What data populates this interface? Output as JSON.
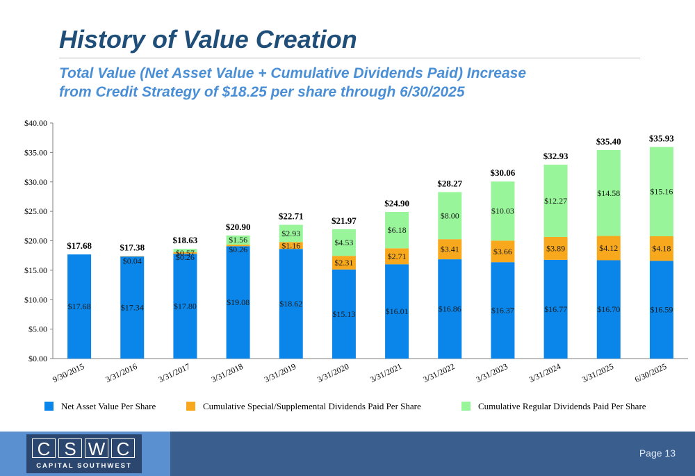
{
  "slide": {
    "title": "History of Value Creation",
    "subtitle_line1": "Total Value (Net Asset Value + Cumulative Dividends Paid) Increase",
    "subtitle_line2": "from Credit Strategy of $18.25 per share through 6/30/2025",
    "page_label": "Page 13"
  },
  "logo": {
    "letters": [
      "C",
      "S",
      "W",
      "C"
    ],
    "tagline": "CAPITAL SOUTHWEST"
  },
  "colors": {
    "nav": "#0a86ea",
    "special": "#f8a81c",
    "regular": "#98f59a",
    "title": "#1f4e79",
    "subtitle": "#4a8fd6"
  },
  "chart_data": {
    "type": "bar",
    "stacked": true,
    "categories": [
      "9/30/2015",
      "3/31/2016",
      "3/31/2017",
      "3/31/2018",
      "3/31/2019",
      "3/31/2020",
      "3/31/2021",
      "3/31/2022",
      "3/31/2023",
      "3/31/2024",
      "3/31/2025",
      "6/30/2025"
    ],
    "series": [
      {
        "name": "Net Asset Value Per Share",
        "color": "#0a86ea",
        "values": [
          17.68,
          17.34,
          17.8,
          19.08,
          18.62,
          15.13,
          16.01,
          16.86,
          16.37,
          16.77,
          16.7,
          16.59
        ],
        "labels": [
          "$17.68",
          "$17.34",
          "$17.80",
          "$19.08",
          "$18.62",
          "$15.13",
          "$16.01",
          "$16.86",
          "$16.37",
          "$16.77",
          "$16.70",
          "$16.59"
        ]
      },
      {
        "name": "Cumulative Special/Supplemental Dividends Paid Per Share",
        "color": "#f8a81c",
        "values": [
          0,
          0.04,
          0.26,
          0.26,
          1.16,
          2.31,
          2.71,
          3.41,
          3.66,
          3.89,
          4.12,
          4.18
        ],
        "labels": [
          "",
          "$0.04",
          "$0.26",
          "$0.26",
          "$1.16",
          "$2.31",
          "$2.71",
          "$3.41",
          "$3.66",
          "$3.89",
          "$4.12",
          "$4.18"
        ]
      },
      {
        "name": "Cumulative Regular Dividends Paid Per Share",
        "color": "#98f59a",
        "values": [
          0,
          0,
          0.57,
          1.56,
          2.93,
          4.53,
          6.18,
          8.0,
          10.03,
          12.27,
          14.58,
          15.16
        ],
        "labels": [
          "",
          "",
          "$0.57",
          "$1.56",
          "$2.93",
          "$4.53",
          "$6.18",
          "$8.00",
          "$10.03",
          "$12.27",
          "$14.58",
          "$15.16"
        ]
      }
    ],
    "totals": [
      17.68,
      17.38,
      18.63,
      20.9,
      22.71,
      21.97,
      24.9,
      28.27,
      30.06,
      32.93,
      35.4,
      35.93
    ],
    "total_labels": [
      "$17.68",
      "$17.38",
      "$18.63",
      "$20.90",
      "$22.71",
      "$21.97",
      "$24.90",
      "$28.27",
      "$30.06",
      "$32.93",
      "$35.40",
      "$35.93"
    ],
    "yticks": [
      "$0.00",
      "$5.00",
      "$10.00",
      "$15.00",
      "$20.00",
      "$25.00",
      "$30.00",
      "$35.00",
      "$40.00"
    ],
    "ylim": [
      0,
      40
    ],
    "legend_position": "bottom",
    "grid": false
  }
}
